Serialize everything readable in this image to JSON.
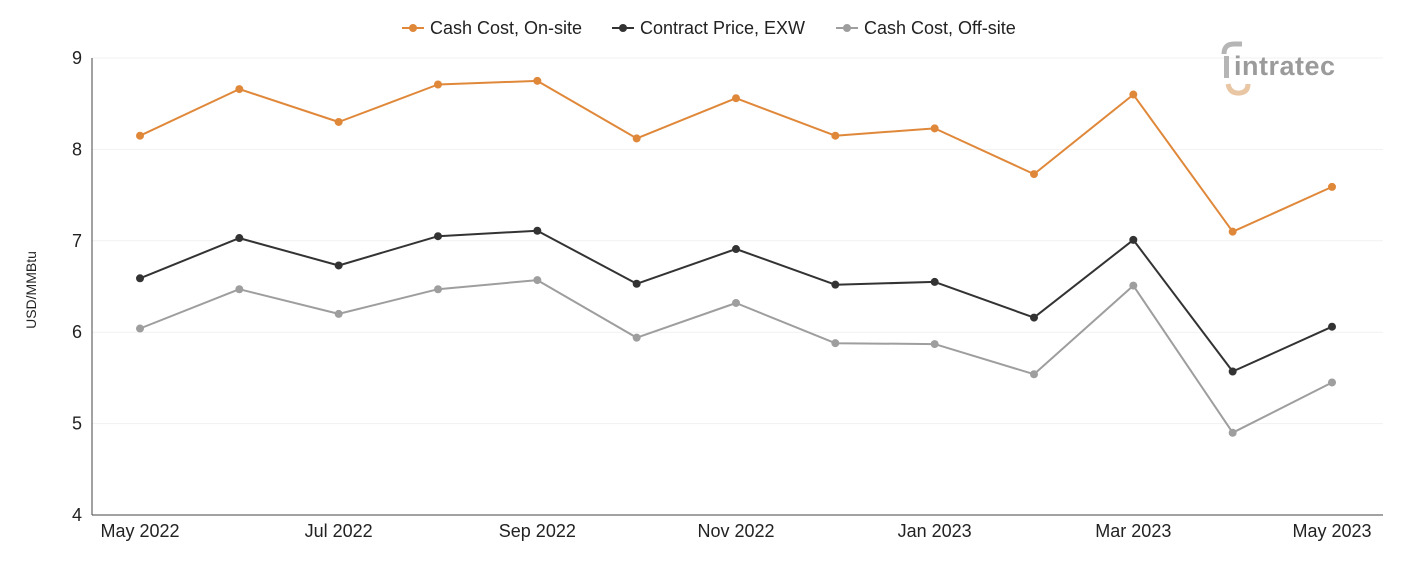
{
  "brand": {
    "logo_text": "intratec"
  },
  "chart_data": {
    "type": "line",
    "title": "",
    "xlabel": "",
    "ylabel": "USD/MMBtu",
    "ylim": [
      4,
      9
    ],
    "yticks": [
      4,
      5,
      6,
      7,
      8,
      9
    ],
    "grid": true,
    "legend_position": "top-center",
    "x": [
      "May 2022",
      "Jun 2022",
      "Jul 2022",
      "Aug 2022",
      "Sep 2022",
      "Oct 2022",
      "Nov 2022",
      "Dec 2022",
      "Jan 2023",
      "Feb 2023",
      "Mar 2023",
      "Apr 2023",
      "May 2023"
    ],
    "x_tick_labels": [
      "May 2022",
      "",
      "Jul 2022",
      "",
      "Sep 2022",
      "",
      "Nov 2022",
      "",
      "Jan 2023",
      "",
      "Mar 2023",
      "",
      "May 2023"
    ],
    "series": [
      {
        "name": "Cash Cost, On-site",
        "color": "#e0883a",
        "values": [
          8.15,
          8.66,
          8.3,
          8.71,
          8.75,
          8.12,
          8.56,
          8.15,
          8.23,
          7.73,
          8.6,
          7.1,
          7.59
        ]
      },
      {
        "name": "Contract Price, EXW",
        "color": "#333333",
        "values": [
          6.59,
          7.03,
          6.73,
          7.05,
          7.11,
          6.53,
          6.91,
          6.52,
          6.55,
          6.16,
          7.01,
          5.57,
          6.06
        ]
      },
      {
        "name": "Cash Cost, Off-site",
        "color": "#9e9e9e",
        "values": [
          6.04,
          6.47,
          6.2,
          6.47,
          6.57,
          5.94,
          6.32,
          5.88,
          5.87,
          5.54,
          6.51,
          4.9,
          5.45
        ]
      }
    ]
  }
}
